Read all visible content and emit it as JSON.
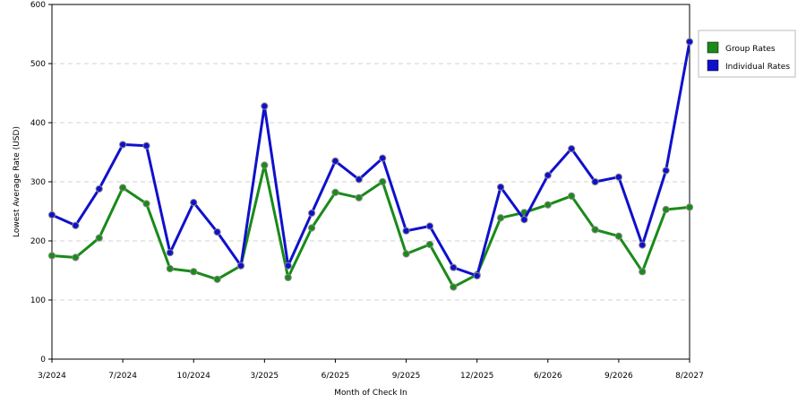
{
  "chart_data": {
    "type": "line",
    "xlabel": "Month of Check In",
    "ylabel": "Lowest Average Rate (USD)",
    "ylim": [
      0,
      600
    ],
    "yticks": [
      0,
      100,
      200,
      300,
      400,
      500,
      600
    ],
    "grid": "horizontal dashed",
    "legend_position": "right",
    "x_tick_labels": [
      "3/2024",
      "7/2024",
      "10/2024",
      "3/2025",
      "6/2025",
      "9/2025",
      "12/2025",
      "6/2026",
      "9/2026",
      "8/2027"
    ],
    "series": [
      {
        "name": "Group Rates",
        "color": "#1a8a1a",
        "values": [
          175,
          172,
          205,
          290,
          263,
          153,
          148,
          135,
          158,
          328,
          138,
          222,
          282,
          273,
          300,
          178,
          194,
          122,
          143,
          239,
          248,
          261,
          276,
          219,
          208,
          148,
          253,
          257
        ]
      },
      {
        "name": "Individual Rates",
        "color": "#1010cc",
        "values": [
          244,
          226,
          288,
          363,
          361,
          180,
          265,
          215,
          158,
          428,
          158,
          247,
          335,
          304,
          340,
          217,
          225,
          155,
          141,
          291,
          236,
          311,
          356,
          300,
          308,
          193,
          319,
          537
        ]
      }
    ]
  }
}
